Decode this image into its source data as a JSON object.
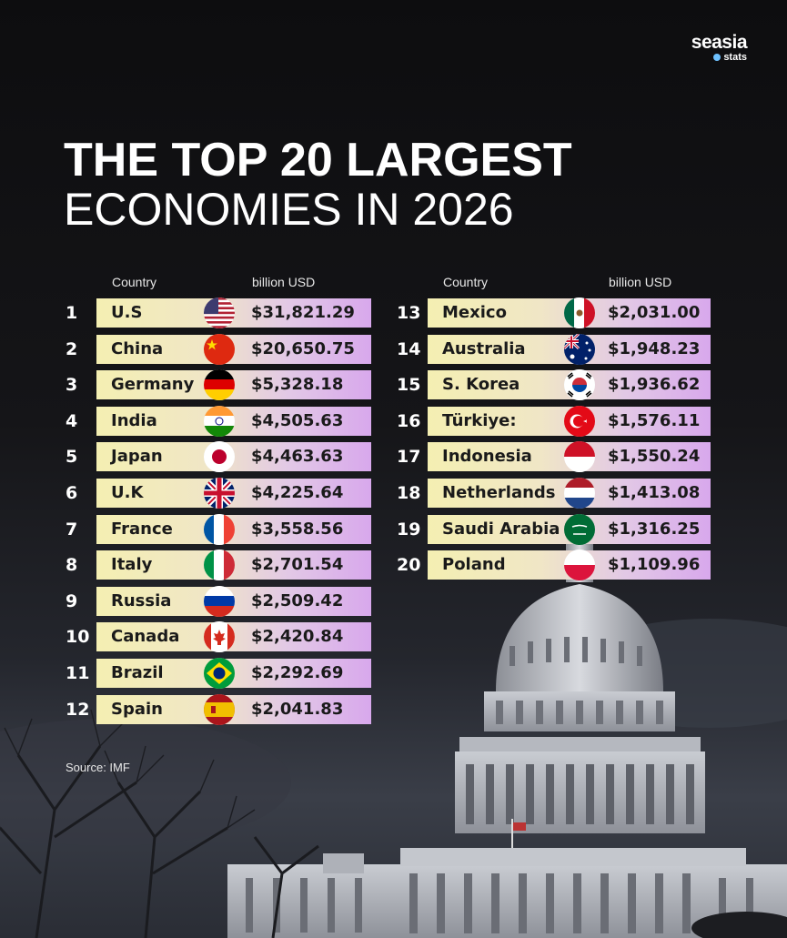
{
  "brand": {
    "name": "seasia",
    "sub": "stats"
  },
  "title": {
    "line1": "THE TOP 20 LARGEST",
    "line2": "ECONOMIES IN 2026"
  },
  "headers": {
    "country": "Country",
    "value": "billion USD"
  },
  "source": "Source: IMF",
  "colors": {
    "bar_start": "#f4efb2",
    "bar_end": "#d8a8ec",
    "background": "#0d0d0f"
  },
  "rankings": [
    {
      "rank": "1",
      "country": "U.S",
      "value": "$31,821.29",
      "flag": "us-flag-icon"
    },
    {
      "rank": "2",
      "country": "China",
      "value": "$20,650.75",
      "flag": "china-flag-icon"
    },
    {
      "rank": "3",
      "country": "Germany",
      "value": "$5,328.18",
      "flag": "germany-flag-icon"
    },
    {
      "rank": "4",
      "country": "India",
      "value": "$4,505.63",
      "flag": "india-flag-icon"
    },
    {
      "rank": "5",
      "country": "Japan",
      "value": "$4,463.63",
      "flag": "japan-flag-icon"
    },
    {
      "rank": "6",
      "country": "U.K",
      "value": "$4,225.64",
      "flag": "uk-flag-icon"
    },
    {
      "rank": "7",
      "country": "France",
      "value": "$3,558.56",
      "flag": "france-flag-icon"
    },
    {
      "rank": "8",
      "country": "Italy",
      "value": "$2,701.54",
      "flag": "italy-flag-icon"
    },
    {
      "rank": "9",
      "country": "Russia",
      "value": "$2,509.42",
      "flag": "russia-flag-icon"
    },
    {
      "rank": "10",
      "country": "Canada",
      "value": "$2,420.84",
      "flag": "canada-flag-icon"
    },
    {
      "rank": "11",
      "country": "Brazil",
      "value": "$2,292.69",
      "flag": "brazil-flag-icon"
    },
    {
      "rank": "12",
      "country": "Spain",
      "value": "$2,041.83",
      "flag": "spain-flag-icon"
    },
    {
      "rank": "13",
      "country": "Mexico",
      "value": "$2,031.00",
      "flag": "mexico-flag-icon"
    },
    {
      "rank": "14",
      "country": "Australia",
      "value": "$1,948.23",
      "flag": "australia-flag-icon"
    },
    {
      "rank": "15",
      "country": "S. Korea",
      "value": "$1,936.62",
      "flag": "south-korea-flag-icon"
    },
    {
      "rank": "16",
      "country": "Türkiye:",
      "value": "$1,576.11",
      "flag": "turkiye-flag-icon"
    },
    {
      "rank": "17",
      "country": "Indonesia",
      "value": "$1,550.24",
      "flag": "indonesia-flag-icon"
    },
    {
      "rank": "18",
      "country": "Netherlands",
      "value": "$1,413.08",
      "flag": "netherlands-flag-icon"
    },
    {
      "rank": "19",
      "country": "Saudi Arabia",
      "value": "$1,316.25",
      "flag": "saudi-arabia-flag-icon"
    },
    {
      "rank": "20",
      "country": "Poland",
      "value": "$1,109.96",
      "flag": "poland-flag-icon"
    }
  ]
}
